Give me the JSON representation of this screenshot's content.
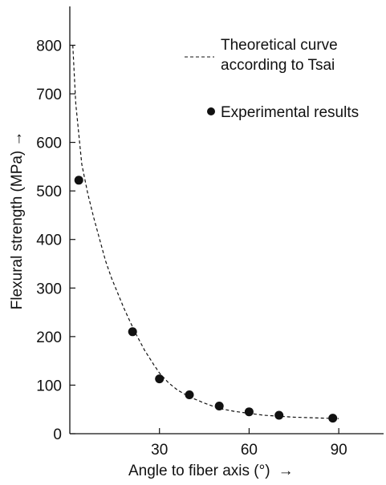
{
  "chart_data": {
    "type": "scatter",
    "title": "",
    "xlabel": "Angle to fiber axis (°)",
    "ylabel": "Flexural strength (MPa)",
    "xlim": [
      0,
      105
    ],
    "ylim": [
      0,
      880
    ],
    "xticks": [
      30,
      60,
      90
    ],
    "yticks": [
      0,
      100,
      200,
      300,
      400,
      500,
      600,
      700,
      800
    ],
    "grid": false,
    "legend_position": "top-right",
    "arrow_glyph": "→",
    "series": [
      {
        "name": "Theoretical curve according to Tsai",
        "legend_lines": [
          "Theoretical curve",
          "according to Tsai"
        ],
        "style": "dashed-line",
        "x": [
          1,
          2,
          4,
          6,
          8,
          10,
          12,
          14,
          16,
          18,
          20,
          22,
          25,
          28,
          30,
          33,
          36,
          40,
          45,
          50,
          55,
          60,
          65,
          70,
          75,
          80,
          85,
          90
        ],
        "y": [
          800,
          680,
          555,
          495,
          445,
          400,
          355,
          320,
          290,
          260,
          233,
          207,
          172,
          143,
          125,
          105,
          90,
          76,
          63,
          52,
          46,
          42,
          38,
          36,
          34,
          33,
          32,
          31
        ]
      },
      {
        "name": "Experimental results",
        "style": "filled-circle",
        "x": [
          3,
          21,
          30,
          40,
          50,
          60,
          70,
          88
        ],
        "y": [
          522,
          210,
          113,
          80,
          57,
          45,
          38,
          32
        ]
      }
    ]
  }
}
